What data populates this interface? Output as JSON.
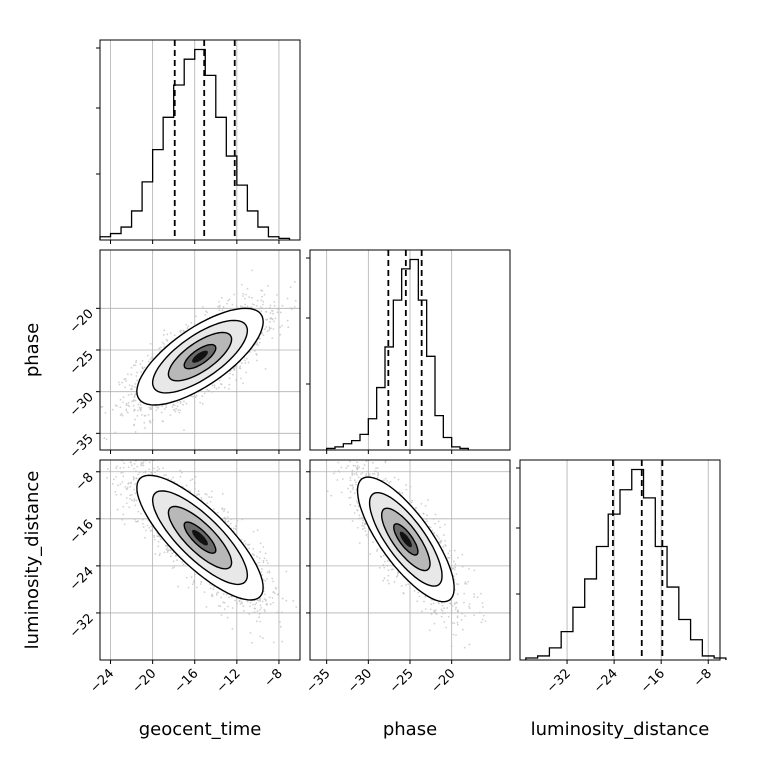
{
  "chart_data": {
    "type": "corner",
    "parameters": [
      "geocent_time",
      "phase",
      "luminosity_distance"
    ],
    "ranges": {
      "geocent_time": [
        -25,
        -6
      ],
      "phase": [
        -37,
        -13
      ],
      "luminosity_distance": [
        -40,
        -6
      ]
    },
    "ticks": {
      "geocent_time": [
        -24,
        -20,
        -16,
        -12,
        -8
      ],
      "phase": [
        -35,
        -30,
        -25,
        -20
      ],
      "luminosity_distance": [
        -32,
        -24,
        -16,
        -8
      ]
    },
    "tick_labels": {
      "geocent_time": [
        "−24",
        "−20",
        "−16",
        "−12",
        "−8"
      ],
      "phase": [
        "−35",
        "−30",
        "−25",
        "−20"
      ],
      "luminosity_distance": [
        "−32",
        "−24",
        "−16",
        "−8"
      ]
    },
    "quantiles": {
      "geocent_time": [
        -17.9,
        -15.1,
        -12.2
      ],
      "phase": [
        -27.6,
        -25.5,
        -23.6
      ],
      "luminosity_distance": [
        -24.2,
        -19.3,
        -15.8
      ]
    },
    "histograms": {
      "geocent_time": {
        "bins": [
          -24.5,
          -23.5,
          -22.5,
          -21.5,
          -20.5,
          -19.5,
          -18.5,
          -17.5,
          -16.5,
          -15.5,
          -14.5,
          -13.5,
          -12.5,
          -11.5,
          -10.5,
          -9.5,
          -8.5,
          -7.5
        ],
        "counts": [
          1,
          2,
          4,
          9,
          18,
          28,
          38,
          48,
          56,
          59,
          51,
          38,
          26,
          17,
          9,
          4,
          1,
          0.5
        ]
      },
      "phase": {
        "bins": [
          -34.5,
          -33.5,
          -32.5,
          -31.5,
          -30.5,
          -29.5,
          -28.5,
          -27.5,
          -26.5,
          -25.5,
          -24.5,
          -23.5,
          -22.5,
          -21.5,
          -20.5,
          -19.5,
          -18.5
        ],
        "counts": [
          0.5,
          1,
          2,
          3,
          5,
          10,
          20,
          33,
          48,
          58,
          61,
          48,
          30,
          11,
          4,
          1,
          0.5
        ]
      },
      "luminosity_distance": {
        "bins": [
          -38,
          -36,
          -34,
          -32,
          -30,
          -28,
          -26,
          -24,
          -22,
          -20,
          -18,
          -16,
          -14,
          -12,
          -10,
          -8,
          -6
        ],
        "counts": [
          0.5,
          1,
          3,
          7,
          13,
          20,
          28,
          36,
          42,
          47,
          40,
          28,
          18,
          10,
          5,
          1,
          0.5
        ]
      }
    },
    "pairs": [
      {
        "x": "geocent_time",
        "y": "phase",
        "mean": [
          -15.5,
          -25.8
        ],
        "sigma": [
          3.0,
          2.9
        ],
        "correlation": 0.72,
        "levels": [
          0.5,
          1.0,
          1.5,
          2.0
        ]
      },
      {
        "x": "geocent_time",
        "y": "luminosity_distance",
        "mean": [
          -15.5,
          -19.2
        ],
        "sigma": [
          3.0,
          5.3
        ],
        "correlation": -0.8,
        "levels": [
          0.5,
          1.0,
          1.5,
          2.0
        ]
      },
      {
        "x": "phase",
        "y": "luminosity_distance",
        "mean": [
          -25.5,
          -19.5
        ],
        "sigma": [
          2.9,
          5.3
        ],
        "correlation": -0.78,
        "levels": [
          0.5,
          1.0,
          1.5,
          2.0
        ]
      }
    ],
    "grid": true,
    "colors": {
      "contour": "#000000",
      "scatter": "#bdbdbd",
      "grid": "#b0b0b0"
    }
  }
}
